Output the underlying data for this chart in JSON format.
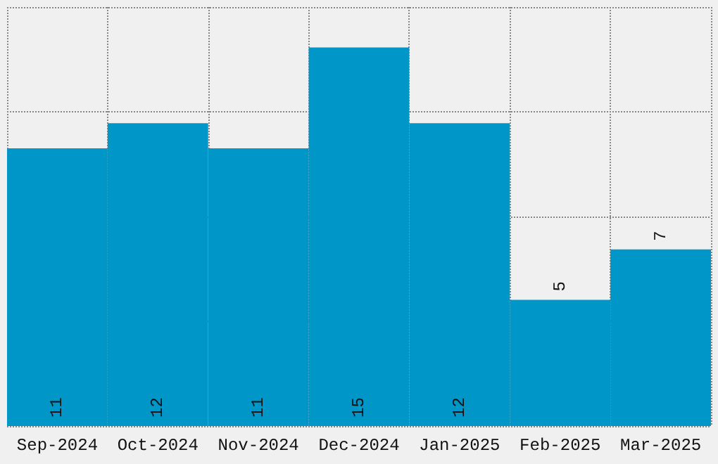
{
  "chart_data": {
    "type": "bar",
    "categories": [
      "Sep-2024",
      "Oct-2024",
      "Nov-2024",
      "Dec-2024",
      "Jan-2025",
      "Feb-2025",
      "Mar-2025"
    ],
    "values": [
      11,
      12,
      11,
      15,
      12,
      5,
      7
    ],
    "color": "#0096c8",
    "data_labels": true,
    "grid": true,
    "tick_labels": "x",
    "ylim": [
      0,
      16.6
    ],
    "yticks": [
      {
        "value": 0,
        "label": null
      },
      {
        "value": 4.15,
        "label": null
      },
      {
        "value": 8.3,
        "label": null
      },
      {
        "value": 12.45,
        "label": null
      },
      {
        "value": 16.6,
        "label": null
      }
    ]
  }
}
